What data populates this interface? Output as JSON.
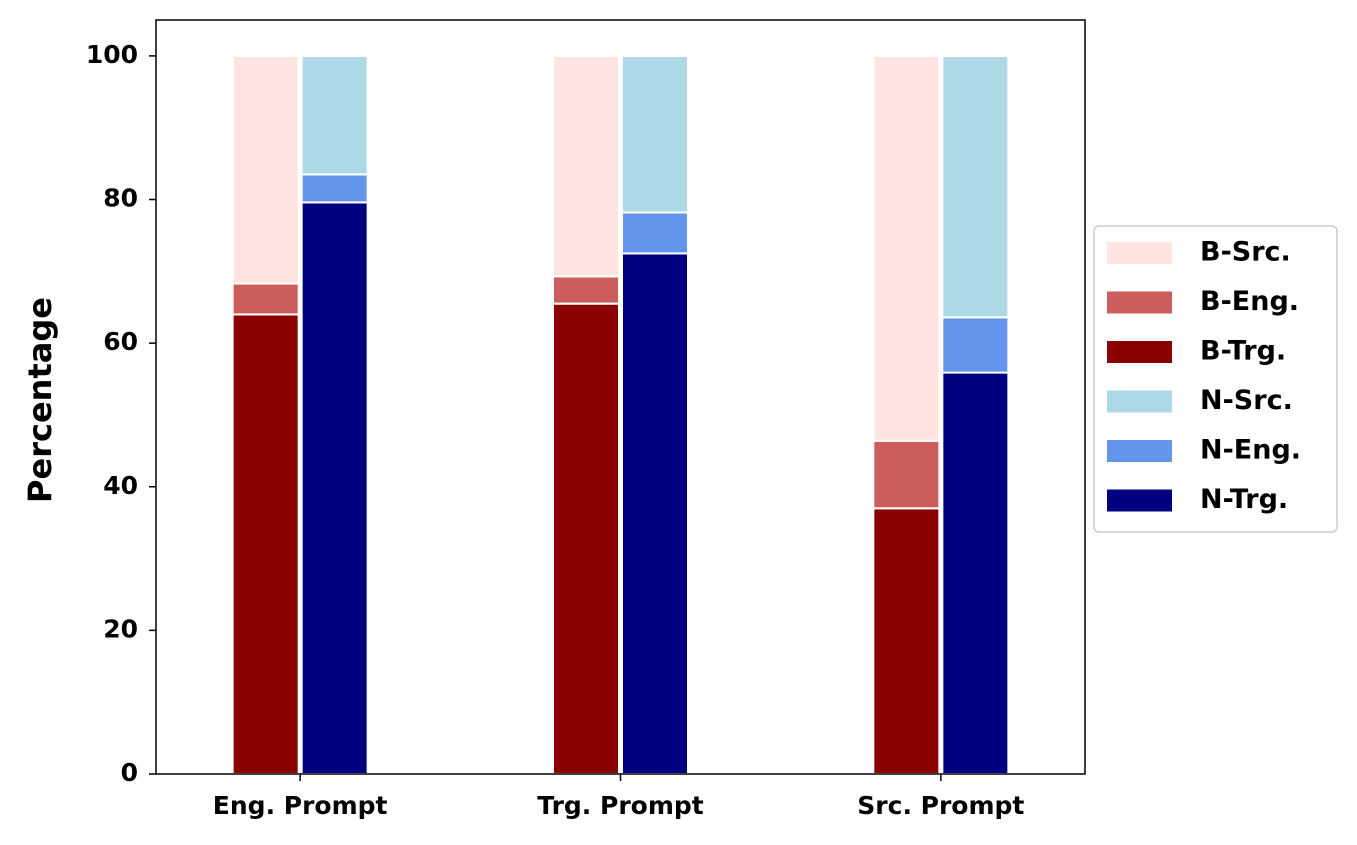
{
  "chart_data": {
    "type": "bar",
    "stacked": true,
    "y_label": "Percentage",
    "categories": [
      "Eng. Prompt",
      "Trg. Prompt",
      "Src. Prompt"
    ],
    "series": [
      {
        "name": "B-Src.",
        "color": "#ffe4e1",
        "stack": 0,
        "values": [
          31.7,
          30.7,
          53.6
        ]
      },
      {
        "name": "B-Eng.",
        "color": "#cd5c5c",
        "stack": 0,
        "values": [
          4.3,
          3.8,
          9.4
        ]
      },
      {
        "name": "B-Trg.",
        "color": "#8b0000",
        "stack": 0,
        "values": [
          64.0,
          65.5,
          37.0
        ]
      },
      {
        "name": "N-Src.",
        "color": "#add8e6",
        "stack": 1,
        "values": [
          16.5,
          21.8,
          36.4
        ]
      },
      {
        "name": "N-Eng.",
        "color": "#6495ed",
        "stack": 1,
        "values": [
          3.9,
          5.7,
          7.7
        ]
      },
      {
        "name": "N-Trg.",
        "color": "#000080",
        "stack": 1,
        "values": [
          79.6,
          72.5,
          55.9
        ]
      }
    ],
    "ylim": [
      0,
      105
    ],
    "yticks": [
      0,
      20,
      40,
      60,
      80,
      100
    ],
    "grid": false,
    "legend": "right"
  }
}
